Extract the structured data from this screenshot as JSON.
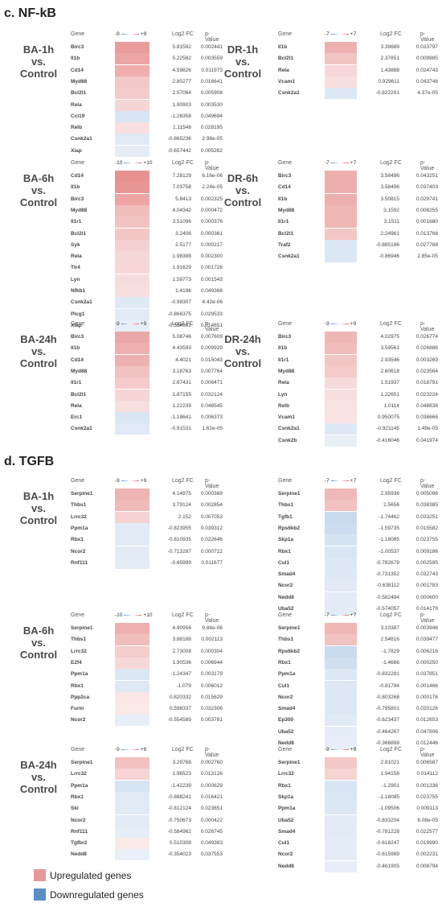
{
  "colors": {
    "up": "#e06e6e",
    "down": "#5b8ec9"
  },
  "legend": [
    {
      "label": "Upregulated genes",
      "color": "#e6999a"
    },
    {
      "label": "Downregulated genes",
      "color": "#5a8fc6"
    }
  ],
  "chart_data": [
    {
      "type": "heatmap",
      "section": "c.  NF-kB",
      "title": "BA-1h vs. Control",
      "scale_min": "-9",
      "scale_max": "+9",
      "range": 9,
      "columns": [
        "Gene",
        "Log2 FC",
        "p-Value"
      ],
      "genes": [
        "Birc3",
        "Il1b",
        "Cd14",
        "Myd88",
        "Bcl2l1",
        "Rela",
        "Ccl19",
        "Relb",
        "Csnk2a1",
        "Xiap"
      ],
      "log2fc": [
        5.81592,
        5.22582,
        4.59826,
        2.80277,
        2.57064,
        1.90903,
        -1.28358,
        1.11548,
        -0.865236,
        -0.657442
      ],
      "pvalue": [
        "0.002441",
        "0.003559",
        "0.011973",
        "0.016641",
        "0.005908",
        "0.003530",
        "0.049694",
        "0.028195",
        "2.98e-05",
        "0.005262"
      ]
    },
    {
      "type": "heatmap",
      "title": "DR-1h vs. Control",
      "scale_min": "-7",
      "scale_max": "+7",
      "range": 7,
      "columns": [
        "Gene",
        "Log2 FC",
        "p-Value"
      ],
      "genes": [
        "Il1b",
        "Bcl2l1",
        "Rela",
        "Vcam1",
        "Csnk2a1"
      ],
      "log2fc": [
        3.39689,
        2.37851,
        1.43888,
        0.929611,
        -0.822291
      ],
      "pvalue": [
        "0.033797",
        "0.009985",
        "0.024743",
        "0.043746",
        "4.37e-05"
      ]
    },
    {
      "type": "heatmap",
      "title": "BA-6h vs. Control",
      "scale_min": "-10",
      "scale_max": "+10",
      "range": 10,
      "columns": [
        "Gene",
        "Log2 FC",
        "p-Value"
      ],
      "genes": [
        "Cd14",
        "Il1b",
        "Birc3",
        "Myd88",
        "Il1r1",
        "Bcl2l1",
        "Syk",
        "Rela",
        "Tlr4",
        "Lyn",
        "Nfkb1",
        "Csnk2a1",
        "Plcg1",
        "Xiap"
      ],
      "log2fc": [
        7.28129,
        7.03758,
        5.8413,
        4.04342,
        3.51096,
        3.2406,
        2.5177,
        1.98388,
        1.91629,
        1.59773,
        1.4196,
        -0.99307,
        -0.866375,
        -0.584962
      ],
      "pvalue": [
        "6.16e-06",
        "2.24e-05",
        "0.002325",
        "0.000472",
        "0.000376",
        "0.000361",
        "0.000217",
        "0.002300",
        "0.001728",
        "0.001543",
        "0.049368",
        "4.42e-06",
        "0.029533",
        "0.014651"
      ]
    },
    {
      "type": "heatmap",
      "title": "DR-6h vs. Control",
      "scale_min": "-7",
      "scale_max": "+7",
      "range": 7,
      "columns": [
        "Gene",
        "Log2 FC",
        "p-Value"
      ],
      "genes": [
        "Birc3",
        "Cd14",
        "Il1b",
        "Myd88",
        "Il1r1",
        "Bcl2l1",
        "Traf2",
        "Csnk2a1"
      ],
      "log2fc": [
        3.58496,
        3.58496,
        3.50815,
        3.1592,
        3.1511,
        2.24961,
        -0.885196,
        -0.86946
      ],
      "pvalue": [
        "0.043251",
        "0.037403",
        "0.029741",
        "0.008255",
        "0.001680",
        "0.013766",
        "0.027788",
        "2.85e-05"
      ]
    },
    {
      "type": "heatmap",
      "title": "BA-24h vs. Control",
      "scale_min": "-9",
      "scale_max": "+9",
      "range": 9,
      "columns": [
        "Gene",
        "Log2 FC",
        "p-Value"
      ],
      "genes": [
        "Birc3",
        "Il1b",
        "Cd14",
        "Myd88",
        "Il1r1",
        "Bcl2l1",
        "Rela",
        "Erc1",
        "Csnk2a1"
      ],
      "log2fc": [
        5.08746,
        4.43593,
        4.4021,
        3.18763,
        2.67431,
        1.87155,
        1.22239,
        -1.18641,
        -0.91531
      ],
      "pvalue": [
        "0.007609",
        "0.009929",
        "0.015043",
        "0.007764",
        "0.006471",
        "0.032124",
        "0.048545",
        "0.006373",
        "1.62e-05"
      ]
    },
    {
      "type": "heatmap",
      "title": "DR-24h vs. Control",
      "scale_min": "-9",
      "scale_max": "+9",
      "range": 9,
      "columns": [
        "Gene",
        "Log2 FC",
        "p-Value"
      ],
      "genes": [
        "Birc3",
        "Il1b",
        "Il1r1",
        "Myd88",
        "Rela",
        "Lyn",
        "Relb",
        "Vcam1",
        "Csnk2a1",
        "Csnk2b"
      ],
      "log2fc": [
        4.02975,
        3.59561,
        2.93546,
        2.60618,
        1.51937,
        1.22651,
        1.0114,
        0.950075,
        -0.921145,
        -0.416046
      ],
      "pvalue": [
        "0.026774",
        "0.026886",
        "0.003269",
        "0.023564",
        "0.018791",
        "0.023224",
        "0.048836",
        "0.038666",
        "1.49e-05",
        "0.041974"
      ]
    },
    {
      "type": "heatmap",
      "section": "d.  TGFB",
      "title": "BA-1h vs. Control",
      "scale_min": "-9",
      "scale_max": "+9",
      "range": 9,
      "columns": [
        "Gene",
        "Log2 FC",
        "p-Value"
      ],
      "genes": [
        "Serpine1",
        "Thbs1",
        "Lrrc32",
        "Ppm1a",
        "Rbx1",
        "Ncor2",
        "Rnf111"
      ],
      "log2fc": [
        4.14975,
        3.79124,
        2.152,
        -0.823955,
        -0.810935,
        -0.713287,
        -0.65999
      ],
      "pvalue": [
        "0.000389",
        "0.002854",
        "0.007053",
        "0.039312",
        "0.022646",
        "0.000722",
        "0.011677"
      ]
    },
    {
      "type": "heatmap",
      "title": "",
      "scale_min": "-7",
      "scale_max": "+7",
      "range": 7,
      "columns": [
        "Gene",
        "Log2 FC",
        "p-Value"
      ],
      "genes": [
        "Serpine1",
        "Thbs1",
        "Tgfb1",
        "Rps6kb2",
        "Skp1a",
        "Rbx1",
        "Cul1",
        "Smad4",
        "Ncor2",
        "Nedd8",
        "Uba52"
      ],
      "log2fc": [
        2.95936,
        2.5656,
        -1.74462,
        -1.59735,
        -1.18085,
        -1.00537,
        -0.782679,
        -0.731352,
        -0.638112,
        -0.582484,
        -0.574057
      ],
      "pvalue": [
        "0.005096",
        "0.038385",
        "0.033251",
        "0.015582",
        "0.023755",
        "0.009186",
        "0.002595",
        "0.032743",
        "0.001783",
        "0.000600",
        "0.014179"
      ]
    },
    {
      "type": "heatmap",
      "title": "BA-6h vs. Control",
      "scale_min": "-10",
      "scale_max": "+10",
      "range": 10,
      "columns": [
        "Gene",
        "Log2 FC",
        "p-Value"
      ],
      "genes": [
        "Serpine1",
        "Thbs1",
        "Lrrc32",
        "E2f4",
        "Ppm1a",
        "Rbx1",
        "Ppp2ca",
        "Furin",
        "Ncor2"
      ],
      "log2fc": [
        4.90956,
        3.88188,
        2.73008,
        1.90536,
        -1.24347,
        -1.079,
        0.820332,
        0.598337,
        -0.554589
      ],
      "pvalue": [
        "9.88e-06",
        "0.002113",
        "0.000304",
        "0.006944",
        "0.003179",
        "0.006012",
        "0.015629",
        "0.032306",
        "0.003781"
      ]
    },
    {
      "type": "heatmap",
      "title": "",
      "scale_min": "-7",
      "scale_max": "+7",
      "range": 7,
      "columns": [
        "Gene",
        "Log2 FC",
        "p-Value"
      ],
      "genes": [
        "Serpine1",
        "Thbs1",
        "Rps6kb2",
        "Rbx1",
        "Ppm1a",
        "Cul1",
        "Ncor2",
        "Smad4",
        "Ep300",
        "Uba52",
        "Nedd8"
      ],
      "log2fc": [
        3.10387,
        2.54816,
        -1.7829,
        -1.4666,
        -0.832281,
        -0.81794,
        -0.803268,
        -0.795801,
        -0.623437,
        -0.464267,
        -0.366899
      ],
      "pvalue": [
        "0.003946",
        "0.039477",
        "0.006216",
        "0.000250",
        "0.037851",
        "0.001466",
        "0.000176",
        "0.020126",
        "0.012653",
        "0.047806",
        "0.012446"
      ]
    },
    {
      "type": "heatmap",
      "title": "BA-24h vs. Control",
      "scale_min": "-9",
      "scale_max": "+9",
      "range": 9,
      "columns": [
        "Gene",
        "Log2 FC",
        "p-Value"
      ],
      "genes": [
        "Serpine1",
        "Lrrc32",
        "Ppm1a",
        "Rbx1",
        "Ski",
        "Ncor2",
        "Rnf111",
        "Tgfbr2",
        "Nedd8"
      ],
      "log2fc": [
        3.29768,
        1.96523,
        -1.42239,
        -0.888241,
        -0.812124,
        -0.750673,
        -0.584962,
        0.510308,
        -0.354023
      ],
      "pvalue": [
        "0.002760",
        "0.013126",
        "0.000629",
        "0.016421",
        "0.023651",
        "0.000422",
        "0.026745",
        "0.049383",
        "0.037553"
      ]
    },
    {
      "type": "heatmap",
      "title": "",
      "scale_min": "-9",
      "scale_max": "+9",
      "range": 9,
      "columns": [
        "Gene",
        "Log2 FC",
        "p-Value"
      ],
      "genes": [
        "Serpine1",
        "Lrrc32",
        "Rbx1",
        "Skp1a",
        "Ppm1a",
        "Uba52",
        "Smad4",
        "Cul1",
        "Ncor2",
        "Nedd8"
      ],
      "log2fc": [
        2.81021,
        1.94158,
        -1.2901,
        -1.18085,
        -1.09506,
        -0.833204,
        -0.781228,
        -0.618247,
        -0.615989,
        -0.461905
      ],
      "pvalue": [
        "0.006587",
        "0.014112",
        "0.001336",
        "0.023755",
        "0.009113",
        "6.08e-05",
        "0.022577",
        "0.019990",
        "0.002231",
        "0.008794"
      ]
    }
  ]
}
